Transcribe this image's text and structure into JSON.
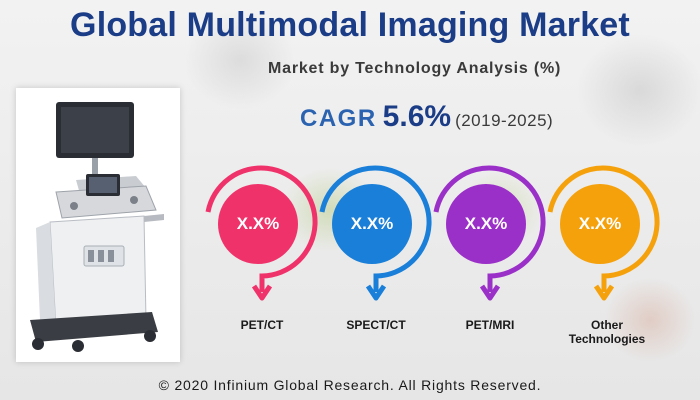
{
  "header": {
    "title": "Global Multimodal Imaging Market",
    "subtitle": "Market by Technology Analysis (%)"
  },
  "cagr": {
    "label": "CAGR",
    "value": "5.6%",
    "period": "(2019-2025)"
  },
  "segments": [
    {
      "value": "X.X%",
      "label": "PET/CT",
      "color": "#f0326b"
    },
    {
      "value": "X.X%",
      "label": "SPECT/CT",
      "color": "#1a7fd9"
    },
    {
      "value": "X.X%",
      "label": "PET/MRI",
      "color": "#9b30c8"
    },
    {
      "value": "X.X%",
      "label_line1": "Other",
      "label_line2": "Technologies",
      "color": "#f5a10c"
    }
  ],
  "footer": {
    "copyright": "© 2020 Infinium Global Research. All Rights Reserved."
  },
  "colors": {
    "title": "#1b3c86",
    "cagr_label": "#2b63b1"
  }
}
